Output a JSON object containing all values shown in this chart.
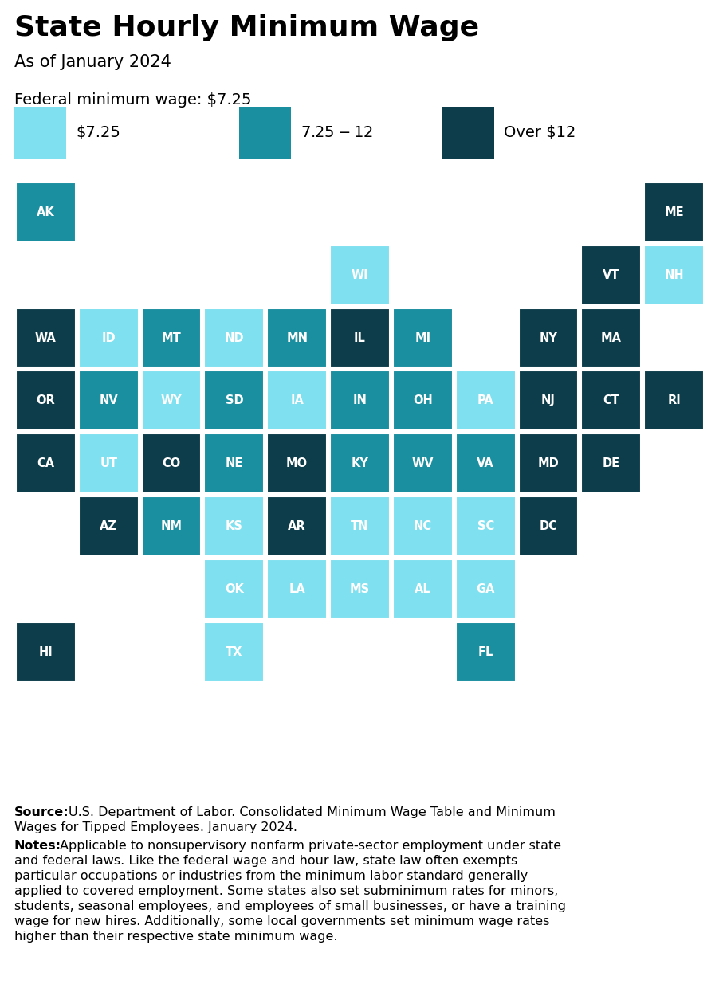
{
  "title": "State Hourly Minimum Wage",
  "subtitle": "As of January 2024",
  "federal_label": "Federal minimum wage: $7.25",
  "legend": [
    {
      "label": "$7.25",
      "color": "#7FE0F0"
    },
    {
      "label": "$7.25-$12",
      "color": "#1A8FA0"
    },
    {
      "label": "Over $12",
      "color": "#0D3D4A"
    }
  ],
  "states": [
    {
      "abbr": "AK",
      "col": 0,
      "row": 0,
      "color": "#1A8FA0"
    },
    {
      "abbr": "ME",
      "col": 10,
      "row": 0,
      "color": "#0D3D4A"
    },
    {
      "abbr": "WI",
      "col": 5,
      "row": 1,
      "color": "#7FE0F0"
    },
    {
      "abbr": "VT",
      "col": 9,
      "row": 1,
      "color": "#0D3D4A"
    },
    {
      "abbr": "NH",
      "col": 10,
      "row": 1,
      "color": "#7FE0F0"
    },
    {
      "abbr": "WA",
      "col": 0,
      "row": 2,
      "color": "#0D3D4A"
    },
    {
      "abbr": "ID",
      "col": 1,
      "row": 2,
      "color": "#7FE0F0"
    },
    {
      "abbr": "MT",
      "col": 2,
      "row": 2,
      "color": "#1A8FA0"
    },
    {
      "abbr": "ND",
      "col": 3,
      "row": 2,
      "color": "#7FE0F0"
    },
    {
      "abbr": "MN",
      "col": 4,
      "row": 2,
      "color": "#1A8FA0"
    },
    {
      "abbr": "IL",
      "col": 5,
      "row": 2,
      "color": "#0D3D4A"
    },
    {
      "abbr": "MI",
      "col": 6,
      "row": 2,
      "color": "#1A8FA0"
    },
    {
      "abbr": "NY",
      "col": 8,
      "row": 2,
      "color": "#0D3D4A"
    },
    {
      "abbr": "MA",
      "col": 9,
      "row": 2,
      "color": "#0D3D4A"
    },
    {
      "abbr": "OR",
      "col": 0,
      "row": 3,
      "color": "#0D3D4A"
    },
    {
      "abbr": "NV",
      "col": 1,
      "row": 3,
      "color": "#1A8FA0"
    },
    {
      "abbr": "WY",
      "col": 2,
      "row": 3,
      "color": "#7FE0F0"
    },
    {
      "abbr": "SD",
      "col": 3,
      "row": 3,
      "color": "#1A8FA0"
    },
    {
      "abbr": "IA",
      "col": 4,
      "row": 3,
      "color": "#7FE0F0"
    },
    {
      "abbr": "IN",
      "col": 5,
      "row": 3,
      "color": "#1A8FA0"
    },
    {
      "abbr": "OH",
      "col": 6,
      "row": 3,
      "color": "#1A8FA0"
    },
    {
      "abbr": "PA",
      "col": 7,
      "row": 3,
      "color": "#7FE0F0"
    },
    {
      "abbr": "NJ",
      "col": 8,
      "row": 3,
      "color": "#0D3D4A"
    },
    {
      "abbr": "CT",
      "col": 9,
      "row": 3,
      "color": "#0D3D4A"
    },
    {
      "abbr": "RI",
      "col": 10,
      "row": 3,
      "color": "#0D3D4A"
    },
    {
      "abbr": "CA",
      "col": 0,
      "row": 4,
      "color": "#0D3D4A"
    },
    {
      "abbr": "UT",
      "col": 1,
      "row": 4,
      "color": "#7FE0F0"
    },
    {
      "abbr": "CO",
      "col": 2,
      "row": 4,
      "color": "#0D3D4A"
    },
    {
      "abbr": "NE",
      "col": 3,
      "row": 4,
      "color": "#1A8FA0"
    },
    {
      "abbr": "MO",
      "col": 4,
      "row": 4,
      "color": "#0D3D4A"
    },
    {
      "abbr": "KY",
      "col": 5,
      "row": 4,
      "color": "#1A8FA0"
    },
    {
      "abbr": "WV",
      "col": 6,
      "row": 4,
      "color": "#1A8FA0"
    },
    {
      "abbr": "VA",
      "col": 7,
      "row": 4,
      "color": "#1A8FA0"
    },
    {
      "abbr": "MD",
      "col": 8,
      "row": 4,
      "color": "#0D3D4A"
    },
    {
      "abbr": "DE",
      "col": 9,
      "row": 4,
      "color": "#0D3D4A"
    },
    {
      "abbr": "AZ",
      "col": 1,
      "row": 5,
      "color": "#0D3D4A"
    },
    {
      "abbr": "NM",
      "col": 2,
      "row": 5,
      "color": "#1A8FA0"
    },
    {
      "abbr": "KS",
      "col": 3,
      "row": 5,
      "color": "#7FE0F0"
    },
    {
      "abbr": "AR",
      "col": 4,
      "row": 5,
      "color": "#0D3D4A"
    },
    {
      "abbr": "TN",
      "col": 5,
      "row": 5,
      "color": "#7FE0F0"
    },
    {
      "abbr": "NC",
      "col": 6,
      "row": 5,
      "color": "#7FE0F0"
    },
    {
      "abbr": "SC",
      "col": 7,
      "row": 5,
      "color": "#7FE0F0"
    },
    {
      "abbr": "DC",
      "col": 8,
      "row": 5,
      "color": "#0D3D4A"
    },
    {
      "abbr": "OK",
      "col": 3,
      "row": 6,
      "color": "#7FE0F0"
    },
    {
      "abbr": "LA",
      "col": 4,
      "row": 6,
      "color": "#7FE0F0"
    },
    {
      "abbr": "MS",
      "col": 5,
      "row": 6,
      "color": "#7FE0F0"
    },
    {
      "abbr": "AL",
      "col": 6,
      "row": 6,
      "color": "#7FE0F0"
    },
    {
      "abbr": "GA",
      "col": 7,
      "row": 6,
      "color": "#7FE0F0"
    },
    {
      "abbr": "HI",
      "col": 0,
      "row": 7,
      "color": "#0D3D4A"
    },
    {
      "abbr": "TX",
      "col": 3,
      "row": 7,
      "color": "#7FE0F0"
    },
    {
      "abbr": "FL",
      "col": 7,
      "row": 7,
      "color": "#1A8FA0"
    }
  ],
  "bg_color": "#FFFFFF",
  "text_color": "#000000"
}
